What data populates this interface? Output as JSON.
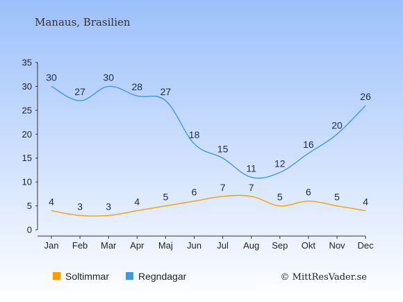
{
  "chart_data": {
    "type": "line",
    "title": "Manaus, Brasilien",
    "categories": [
      "Jan",
      "Feb",
      "Mar",
      "Apr",
      "Maj",
      "Jun",
      "Jul",
      "Aug",
      "Sep",
      "Okt",
      "Nov",
      "Dec"
    ],
    "ylim": [
      0,
      35
    ],
    "yticks": [
      0,
      5,
      10,
      15,
      20,
      25,
      30,
      35
    ],
    "grid": false,
    "legend_position": "bottom",
    "series": [
      {
        "name": "Soltimmar",
        "color": "#f5a000",
        "values": [
          4,
          3,
          3,
          4,
          5,
          6,
          7,
          7,
          5,
          6,
          5,
          4
        ]
      },
      {
        "name": "Regndagar",
        "color": "#3a9ae8",
        "values": [
          30,
          27,
          30,
          28,
          27,
          18,
          15,
          11,
          12,
          16,
          20,
          26
        ]
      }
    ]
  },
  "credit": "© MittResVader.se",
  "colors": {
    "background_top": "#9cc0fb",
    "background_bottom": "#ffffff",
    "axis": "#333333"
  }
}
